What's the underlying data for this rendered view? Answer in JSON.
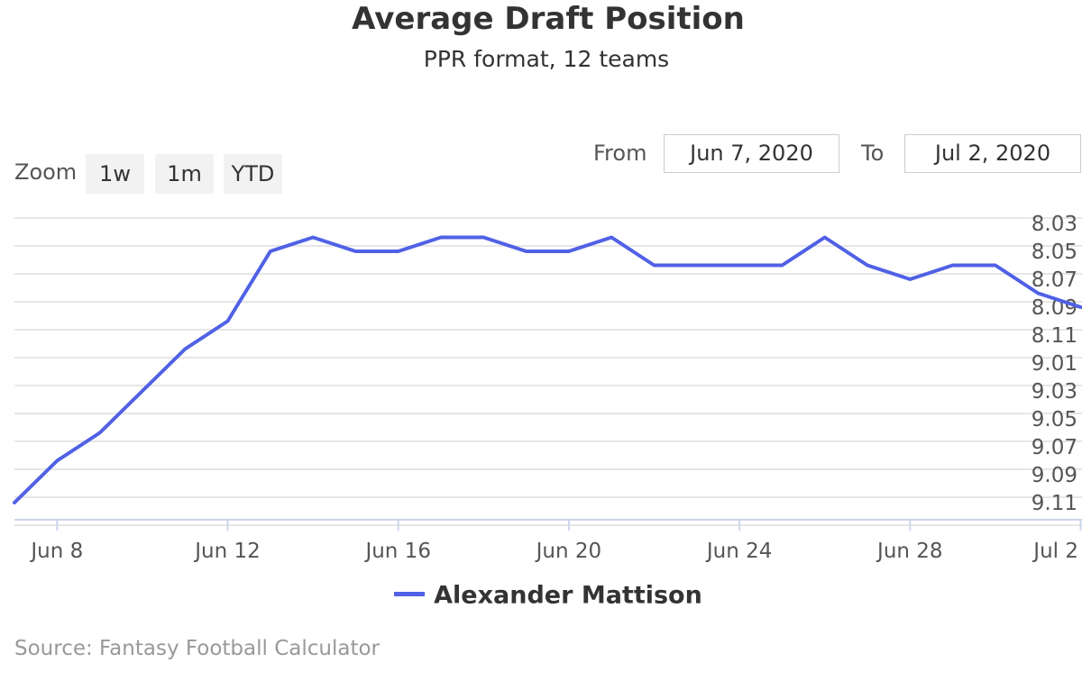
{
  "chart_data": {
    "type": "line",
    "title": "Average Draft Position",
    "subtitle": "PPR format, 12 teams",
    "xlabel": "",
    "ylabel": "",
    "grid": true,
    "legend_position": "bottom-center",
    "y_reversed": true,
    "ytick_labels": [
      "8.03",
      "8.05",
      "8.07",
      "8.09",
      "8.11",
      "9.01",
      "9.03",
      "9.05",
      "9.07",
      "9.09",
      "9.11"
    ],
    "xtick_labels": [
      "Jun 8",
      "Jun 12",
      "Jun 16",
      "Jun 20",
      "Jun 24",
      "Jun 28",
      "Jul 2"
    ],
    "x": [
      "Jun 7",
      "Jun 8",
      "Jun 9",
      "Jun 10",
      "Jun 11",
      "Jun 12",
      "Jun 13",
      "Jun 14",
      "Jun 15",
      "Jun 16",
      "Jun 17",
      "Jun 18",
      "Jun 19",
      "Jun 20",
      "Jun 21",
      "Jun 22",
      "Jun 23",
      "Jun 24",
      "Jun 25",
      "Jun 26",
      "Jun 27",
      "Jun 28",
      "Jun 29",
      "Jun 30",
      "Jul 1",
      "Jul 2"
    ],
    "series": [
      {
        "name": "Alexander Mattison",
        "color": "#5061e6",
        "values": [
          "9.11",
          "9.08",
          "9.06",
          "9.03",
          "9.00",
          "8.10",
          "8.05",
          "8.04",
          "8.05",
          "8.05",
          "8.04",
          "8.04",
          "8.05",
          "8.05",
          "8.04",
          "8.06",
          "8.06",
          "8.06",
          "8.06",
          "8.04",
          "8.06",
          "8.07",
          "8.06",
          "8.06",
          "8.08",
          "8.09"
        ]
      }
    ]
  },
  "range_selector": {
    "zoom_label": "Zoom",
    "buttons": [
      "1w",
      "1m",
      "YTD"
    ],
    "from_label": "From",
    "from_value": "Jun 7, 2020",
    "to_label": "To",
    "to_value": "Jul 2, 2020"
  },
  "credits": "Source: Fantasy Football Calculator"
}
